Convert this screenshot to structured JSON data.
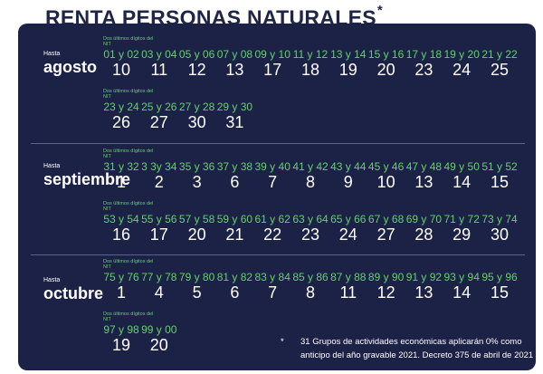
{
  "title": "RENTA PERSONAS NATURALES",
  "title_mark": "*",
  "digits_label": "Dos últimos dígitos del NIT",
  "hasta_label": "Hasta",
  "months": [
    {
      "name": "agosto",
      "rows": [
        [
          [
            "01 y 02",
            "10"
          ],
          [
            "03 y 04",
            "11"
          ],
          [
            "05 y 06",
            "12"
          ],
          [
            "07 y 08",
            "13"
          ],
          [
            "09 y 10",
            "17"
          ],
          [
            "11 y 12",
            "18"
          ],
          [
            "13 y 14",
            "19"
          ],
          [
            "15 y 16",
            "20"
          ],
          [
            "17 y 18",
            "23"
          ],
          [
            "19 y 20",
            "24"
          ],
          [
            "21 y 22",
            "25"
          ]
        ],
        [
          [
            "23 y 24",
            "26"
          ],
          [
            "25 y 26",
            "27"
          ],
          [
            "27 y 28",
            "30"
          ],
          [
            "29 y 30",
            "31"
          ]
        ]
      ]
    },
    {
      "name": "septiembre",
      "rows": [
        [
          [
            "31 y 32",
            "1"
          ],
          [
            "3 3y 34",
            "2"
          ],
          [
            "35 y 36",
            "3"
          ],
          [
            "37 y 38",
            "6"
          ],
          [
            "39 y 40",
            "7"
          ],
          [
            "41 y 42",
            "8"
          ],
          [
            "43 y 44",
            "9"
          ],
          [
            "45 y 46",
            "10"
          ],
          [
            "47 y 48",
            "13"
          ],
          [
            "49 y 50",
            "14"
          ],
          [
            "51 y 52",
            "15"
          ]
        ],
        [
          [
            "53 y 54",
            "16"
          ],
          [
            "55 y 56",
            "17"
          ],
          [
            "57 y 58",
            "20"
          ],
          [
            "59 y 60",
            "21"
          ],
          [
            "61 y 62",
            "22"
          ],
          [
            "63 y 64",
            "23"
          ],
          [
            "65 y 66",
            "24"
          ],
          [
            "67 y 68",
            "27"
          ],
          [
            "69 y 70",
            "28"
          ],
          [
            "71 y 72",
            "29"
          ],
          [
            "73 y 74",
            "30"
          ]
        ]
      ]
    },
    {
      "name": "octubre",
      "rows": [
        [
          [
            "75 y 76",
            "1"
          ],
          [
            "77 y 78",
            "4"
          ],
          [
            "79 y 80",
            "5"
          ],
          [
            "81 y 82",
            "6"
          ],
          [
            "83 y 84",
            "7"
          ],
          [
            "85 y 86",
            "8"
          ],
          [
            "87 y 88",
            "11"
          ],
          [
            "89 y 90",
            "12"
          ],
          [
            "91 y 92",
            "13"
          ],
          [
            "93 y 94",
            "14"
          ],
          [
            "95 y 96",
            "15"
          ]
        ],
        [
          [
            "97 y 98",
            "19"
          ],
          [
            "99 y 00",
            "20"
          ]
        ]
      ]
    }
  ],
  "note": {
    "mark": "*",
    "text": "31 Grupos de actividades económicas aplicarán 0% como anticipo del año gravable 2021. Decreto 375 de abril de 2021"
  }
}
